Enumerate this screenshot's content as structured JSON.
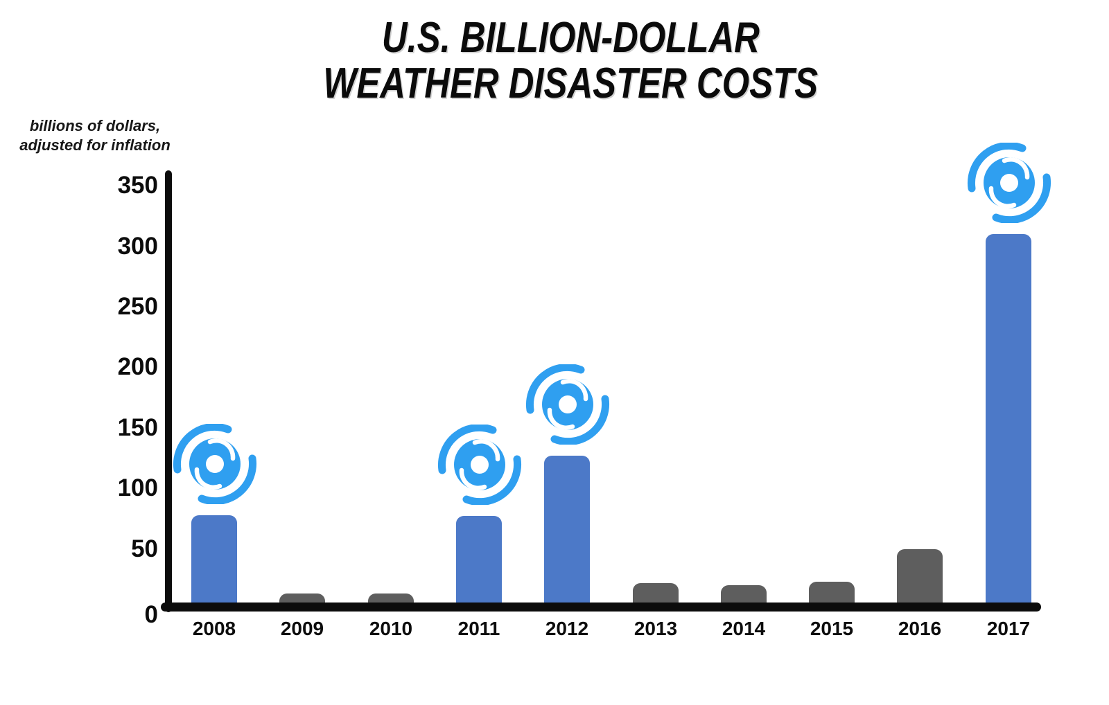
{
  "title": {
    "line1": "U.S. BILLION-DOLLAR",
    "line2": "WEATHER DISASTER COSTS"
  },
  "axis_note": {
    "line1": "billions of dollars,",
    "line2": "adjusted for inflation"
  },
  "chart_data": {
    "type": "bar",
    "title": "U.S. Billion-Dollar Weather Disaster Costs",
    "subtitle": "billions of dollars, adjusted for inflation",
    "xlabel": "",
    "ylabel": "billions of dollars, adjusted for inflation",
    "categories": [
      "2008",
      "2009",
      "2010",
      "2011",
      "2012",
      "2013",
      "2014",
      "2015",
      "2016",
      "2017"
    ],
    "values": [
      78,
      13,
      13,
      77,
      127,
      22,
      20,
      23,
      50,
      310
    ],
    "hurricane": [
      true,
      false,
      false,
      true,
      true,
      false,
      false,
      false,
      false,
      true
    ],
    "ylim": [
      0,
      350
    ],
    "yticks": [
      0,
      50,
      100,
      150,
      200,
      250,
      300,
      350
    ],
    "grid": false,
    "legend_position": "none",
    "colors": {
      "highlight_bar": "#4C79C8",
      "default_bar": "#5E5E5E",
      "hurricane_icon": "#2F9FF0",
      "axis": "#0c0c0c",
      "background": "#ffffff"
    }
  }
}
